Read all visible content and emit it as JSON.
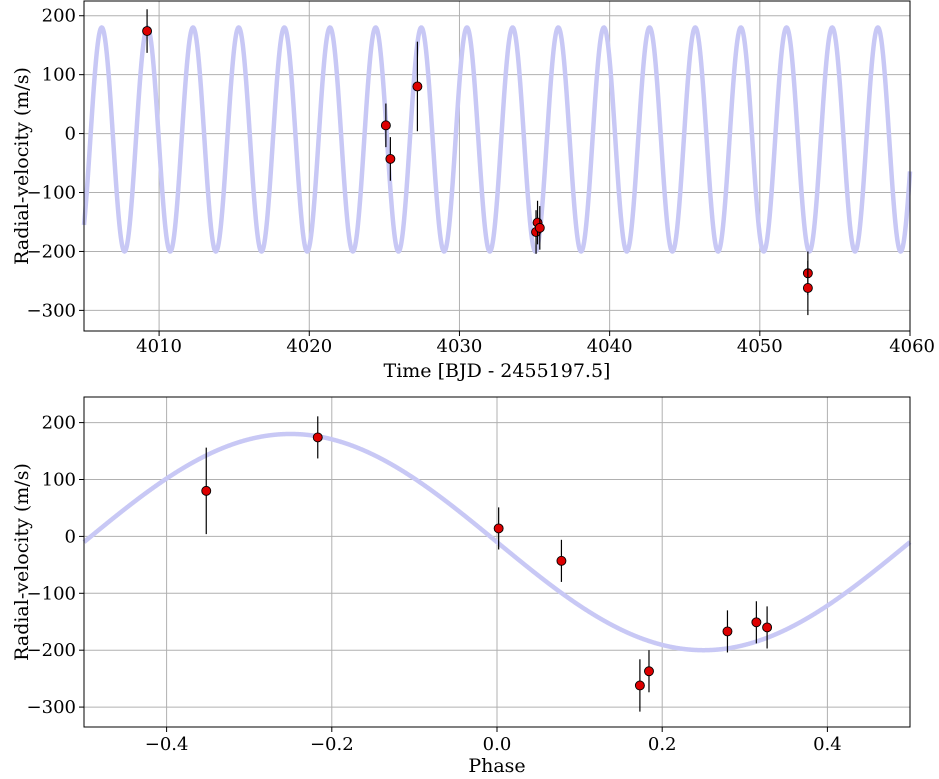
{
  "colors": {
    "model_curve": "#c8c8f5",
    "point_fill": "#dd0000",
    "point_edge": "#000000",
    "errorbar": "#000000",
    "grid": "#b0b0b0",
    "frame": "#000000"
  },
  "chart_data": [
    {
      "type": "scatter",
      "xlabel": "Time [BJD - 2455197.5]",
      "ylabel": "Radial-velocity (m/s)",
      "xlim": [
        4005,
        4060
      ],
      "ylim": [
        -335,
        225
      ],
      "xticks": [
        4010,
        4020,
        4030,
        4040,
        4050,
        4060
      ],
      "yticks": [
        -300,
        -200,
        -100,
        0,
        100,
        200
      ],
      "grid": true,
      "model": {
        "name": "",
        "shape": "sinusoid",
        "amplitude": 190,
        "offset": -10,
        "period_days": 3.04,
        "peak_time": 4009.22
      },
      "series": [
        {
          "name": "",
          "points": [
            {
              "x": 4009.2,
              "y": 174,
              "err": 37
            },
            {
              "x": 4025.1,
              "y": 14,
              "err": 37
            },
            {
              "x": 4025.4,
              "y": -43,
              "err": 37
            },
            {
              "x": 4027.2,
              "y": 80,
              "err": 76
            },
            {
              "x": 4035.1,
              "y": -167,
              "err": 37
            },
            {
              "x": 4035.2,
              "y": -151,
              "err": 37
            },
            {
              "x": 4035.35,
              "y": -160,
              "err": 37
            },
            {
              "x": 4053.2,
              "y": -237,
              "err": 37
            },
            {
              "x": 4053.2,
              "y": -262,
              "err": 46
            }
          ]
        }
      ]
    },
    {
      "type": "scatter",
      "xlabel": "Phase",
      "ylabel": "Radial-velocity (m/s)",
      "xlim": [
        -0.5,
        0.5
      ],
      "ylim": [
        -335,
        245
      ],
      "xticks": [
        -0.4,
        -0.2,
        0.0,
        0.2,
        0.4
      ],
      "xtick_labels": [
        "−0.4",
        "−0.2",
        "0.0",
        "0.2",
        "0.4"
      ],
      "yticks": [
        -300,
        -200,
        -100,
        0,
        100,
        200
      ],
      "grid": true,
      "model": {
        "name": "",
        "shape": "sinusoid-phase",
        "amplitude": 190,
        "offset": -10,
        "peak_phase": -0.25
      },
      "series": [
        {
          "name": "",
          "points": [
            {
              "x": -0.352,
              "y": 80,
              "err": 76
            },
            {
              "x": -0.217,
              "y": 174,
              "err": 37
            },
            {
              "x": 0.002,
              "y": 14,
              "err": 37
            },
            {
              "x": 0.078,
              "y": -43,
              "err": 37
            },
            {
              "x": 0.173,
              "y": -262,
              "err": 46
            },
            {
              "x": 0.184,
              "y": -237,
              "err": 37
            },
            {
              "x": 0.279,
              "y": -167,
              "err": 37
            },
            {
              "x": 0.314,
              "y": -151,
              "err": 37
            },
            {
              "x": 0.327,
              "y": -160,
              "err": 37
            }
          ]
        }
      ]
    }
  ]
}
